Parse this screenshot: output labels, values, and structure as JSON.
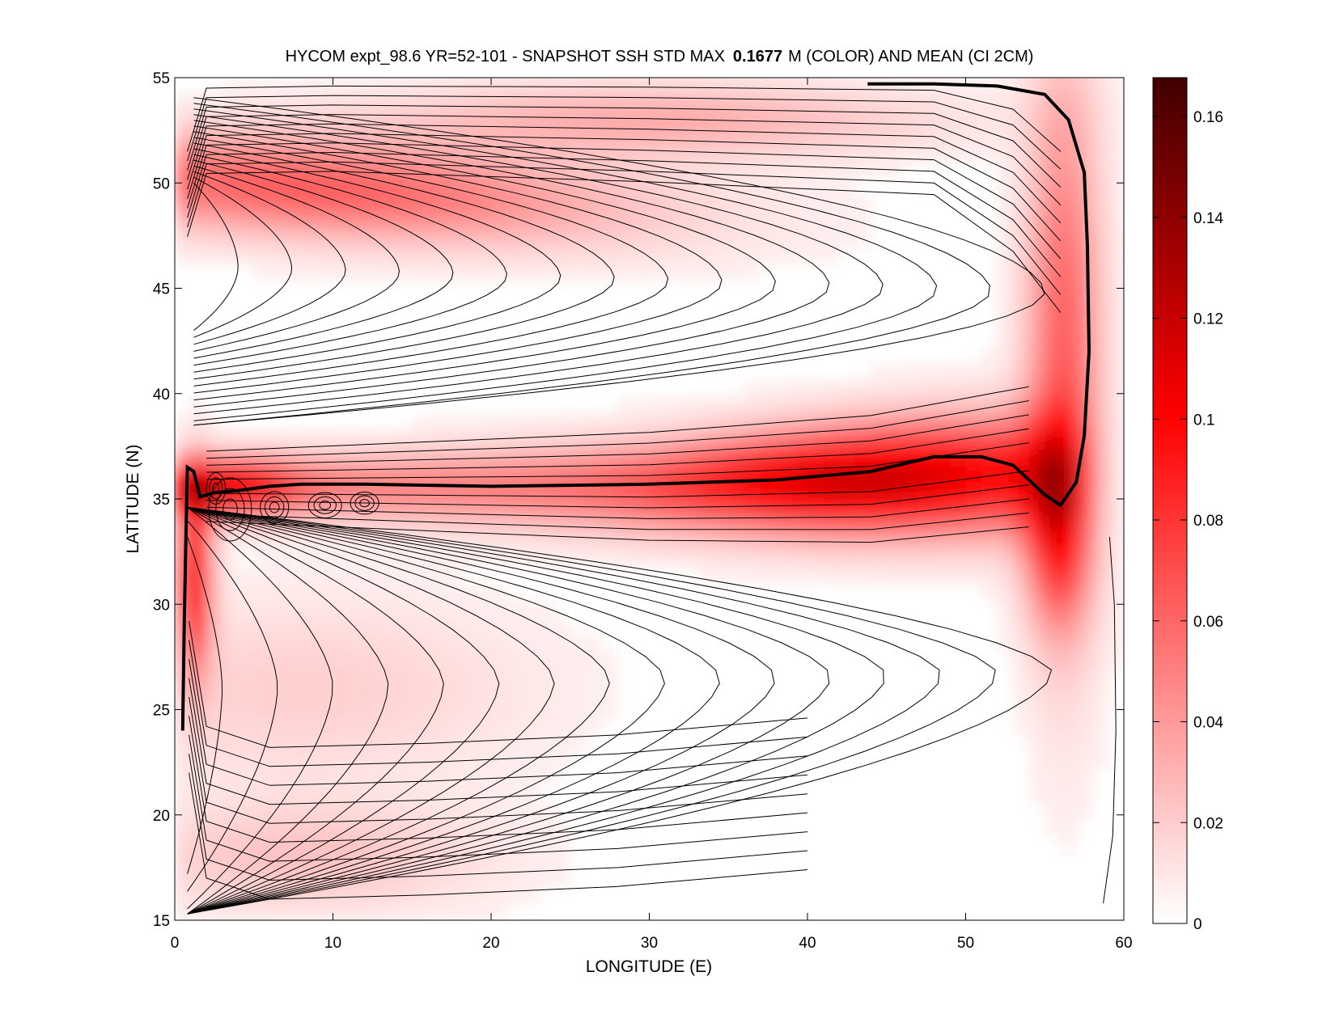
{
  "chart_data": {
    "type": "heatmap",
    "title": {
      "prefix": "HYCOM expt_98.6 YR=52-101 - SNAPSHOT SSH STD MAX",
      "max_value": "0.1677",
      "suffix": "M (COLOR) AND MEAN (CI 2CM)"
    },
    "xlabel": "LONGITUDE (E)",
    "ylabel": "LATITUDE (N)",
    "xlim": [
      0,
      60
    ],
    "ylim": [
      15,
      55
    ],
    "xticks": [
      0,
      10,
      20,
      30,
      40,
      50,
      60
    ],
    "yticks": [
      15,
      20,
      25,
      30,
      35,
      40,
      45,
      50,
      55
    ],
    "colorbar": {
      "range": [
        0,
        0.1677
      ],
      "ticks": [
        "0",
        "0.02",
        "0.04",
        "0.06",
        "0.08",
        "0.1",
        "0.12",
        "0.14",
        "0.16"
      ],
      "tick_values": [
        0,
        0.02,
        0.04,
        0.06,
        0.08,
        0.1,
        0.12,
        0.14,
        0.16
      ],
      "colormap": [
        "#ffffff",
        "#ff0000",
        "#400000"
      ]
    },
    "color_field": {
      "note_free": true,
      "features": [
        {
          "kind": "jet",
          "lon_start": 0.5,
          "lon_end": 56,
          "lat": 35.6,
          "peak": 0.12
        },
        {
          "kind": "subpolar_band",
          "lon_start": 1,
          "lon_end": 30,
          "lat": 50,
          "peak": 0.07
        },
        {
          "kind": "western_boundary",
          "lon": 1.2,
          "lat_start": 28,
          "lat_end": 37,
          "peak": 0.11
        },
        {
          "kind": "eastern_boundary",
          "lon": 56,
          "lat_start": 30,
          "lat_end": 54,
          "peak": 0.06
        }
      ]
    },
    "mean_contour_interval_cm": 2,
    "zero_contour_path": [
      [
        0.5,
        24
      ],
      [
        0.6,
        29
      ],
      [
        0.7,
        33
      ],
      [
        0.8,
        36.5
      ],
      [
        1.2,
        36.3
      ],
      [
        1.6,
        35.1
      ],
      [
        2.5,
        35.3
      ],
      [
        4,
        35.4
      ],
      [
        6,
        35.6
      ],
      [
        8,
        35.7
      ],
      [
        12,
        35.7
      ],
      [
        20,
        35.6
      ],
      [
        30,
        35.7
      ],
      [
        38,
        35.9
      ],
      [
        44,
        36.3
      ],
      [
        48,
        37.0
      ],
      [
        51,
        37.0
      ],
      [
        53,
        36.6
      ],
      [
        55,
        35.2
      ],
      [
        56,
        34.7
      ],
      [
        57,
        35.8
      ],
      [
        57.5,
        38
      ],
      [
        57.8,
        42
      ],
      [
        57.7,
        47
      ],
      [
        57.5,
        50.5
      ],
      [
        56.5,
        53
      ],
      [
        55,
        54.2
      ],
      [
        52,
        54.6
      ],
      [
        48,
        54.7
      ],
      [
        43.8,
        54.7
      ]
    ]
  }
}
